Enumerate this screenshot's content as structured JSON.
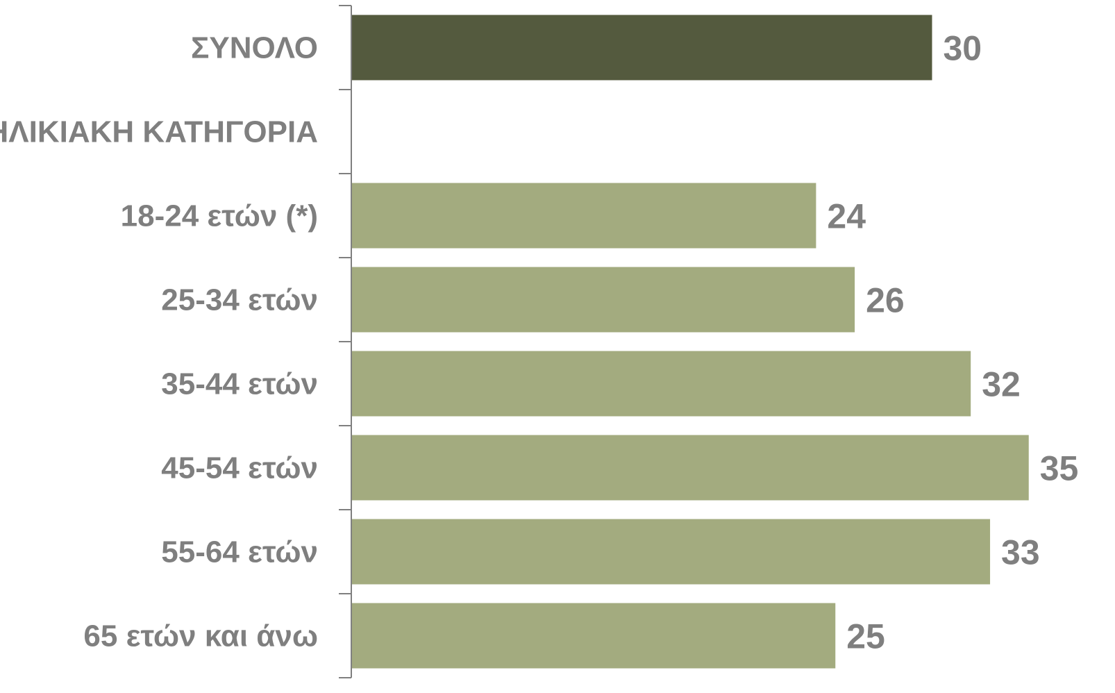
{
  "chart_data": {
    "type": "bar",
    "orientation": "horizontal",
    "categories": [
      "ΣΥΝΟΛΟ",
      "ΗΛΙΚΙΑΚΗ ΚΑΤΗΓΟΡΙΑ",
      "18-24 ετών (*)",
      "25-34 ετών",
      "35-44 ετών",
      "45-54 ετών",
      "55-64 ετών",
      "65 ετών και άνω"
    ],
    "values": [
      30,
      null,
      24,
      26,
      32,
      35,
      33,
      25
    ],
    "value_labels": [
      "30",
      "",
      "24",
      "26",
      "32",
      "35",
      "33",
      "25"
    ],
    "xlim": [
      0,
      35
    ],
    "grid": false,
    "legend": "none",
    "colors": {
      "total": "#545a3e",
      "category": "#a3ab7f",
      "text": "#7f7f7f",
      "axis": "#7f7f7f"
    },
    "bar_color_keys": [
      "total",
      "category",
      "category",
      "category",
      "category",
      "category",
      "category",
      "category"
    ]
  }
}
